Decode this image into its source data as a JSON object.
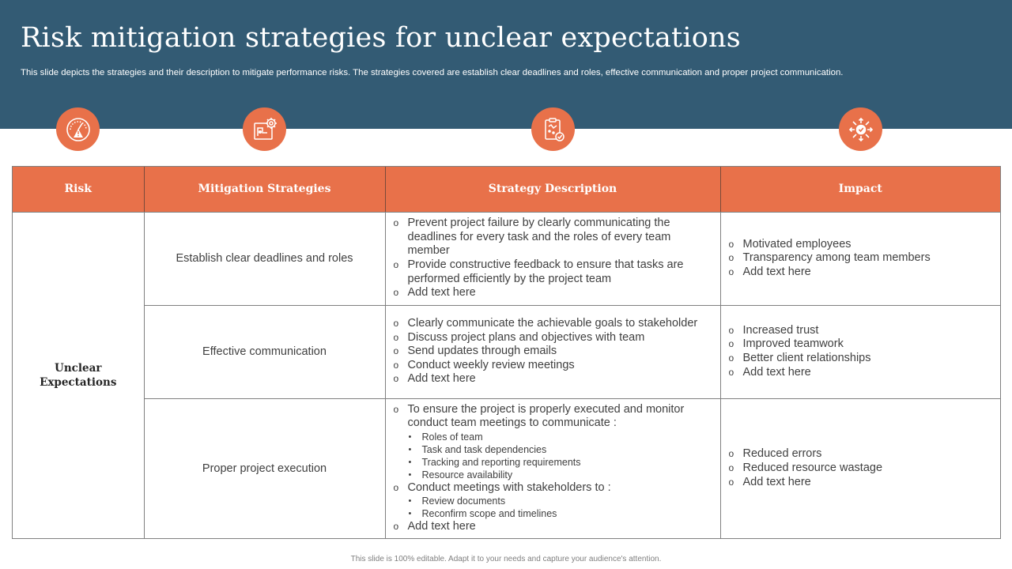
{
  "title": "Risk mitigation strategies for unclear expectations",
  "subtitle": "This slide depicts the strategies and their description to mitigate performance risks. The strategies covered are establish clear deadlines and roles, effective communication and proper project communication.",
  "icons": [
    "speedometer-warning-icon",
    "blueprint-gear-icon",
    "clipboard-check-icon",
    "target-arrows-icon"
  ],
  "colors": {
    "header_band": "#335B74",
    "accent": "#E8714A"
  },
  "table": {
    "headers": [
      "Risk",
      "Mitigation Strategies",
      "Strategy Description",
      "Impact"
    ],
    "risk": "Unclear Expectations",
    "rows": [
      {
        "strategy": "Establish clear deadlines and roles",
        "description": [
          {
            "text": "Prevent project failure by clearly communicating the deadlines for every task and the roles of every team member"
          },
          {
            "text": "Provide constructive feedback to ensure that tasks are performed efficiently by the project team"
          },
          {
            "text": "Add text here"
          }
        ],
        "impact": [
          "Motivated employees",
          "Transparency among team members",
          "Add text here"
        ]
      },
      {
        "strategy": "Effective communication",
        "description": [
          {
            "text": "Clearly communicate the achievable goals to stakeholder"
          },
          {
            "text": "Discuss project plans and objectives with team"
          },
          {
            "text": "Send updates through emails"
          },
          {
            "text": "Conduct weekly review meetings"
          },
          {
            "text": "Add text here"
          }
        ],
        "impact": [
          "Increased trust",
          "Improved teamwork",
          "Better client relationships",
          "Add text here"
        ]
      },
      {
        "strategy": "Proper project execution",
        "description": [
          {
            "text": "To ensure the project is properly executed and monitor conduct team meetings to communicate :",
            "sub": [
              "Roles of team",
              "Task and task dependencies",
              "Tracking and reporting requirements",
              "Resource availability"
            ]
          },
          {
            "text": "Conduct meetings with stakeholders to :",
            "sub": [
              "Review documents",
              "Reconfirm scope and timelines"
            ]
          },
          {
            "text": "Add text here"
          }
        ],
        "impact": [
          "Reduced errors",
          "Reduced resource wastage",
          "Add text here"
        ]
      }
    ]
  },
  "footer": "This slide is 100% editable. Adapt it to your needs and capture your audience's attention."
}
